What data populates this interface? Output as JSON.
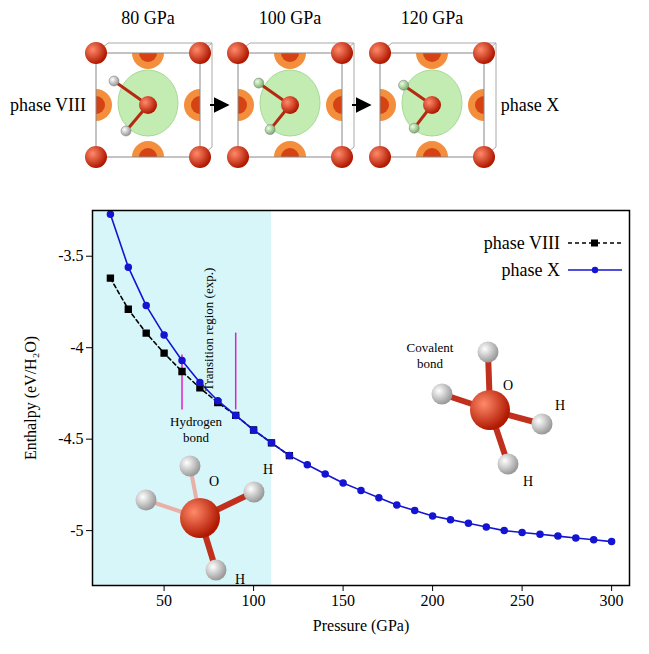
{
  "chart_data": {
    "type": "line",
    "xlabel": "Pressure (GPa)",
    "ylabel": "Enthalpy (eV/H₂O)",
    "xlim": [
      10,
      310
    ],
    "xticks": [
      50,
      100,
      150,
      200,
      250,
      300
    ],
    "ylim": [
      -5.3,
      -3.25
    ],
    "yticks": [
      -3.5,
      -4,
      -4.5,
      -5
    ],
    "legend": "upper right",
    "series": [
      {
        "name": "phase VIII",
        "color": "#000000",
        "marker": "square",
        "line_style": "dashed",
        "x": [
          20,
          30,
          40,
          50,
          60,
          70,
          80,
          90,
          100,
          110,
          120
        ],
        "values": [
          -3.62,
          -3.79,
          -3.92,
          -4.03,
          -4.13,
          -4.22,
          -4.3,
          -4.37,
          -4.45,
          -4.52,
          -4.59
        ]
      },
      {
        "name": "phase X",
        "color": "#1414d2",
        "marker": "circle",
        "line_style": "solid",
        "x": [
          20,
          30,
          40,
          50,
          60,
          70,
          80,
          90,
          100,
          110,
          120,
          130,
          140,
          150,
          160,
          170,
          180,
          190,
          200,
          210,
          220,
          230,
          240,
          250,
          260,
          270,
          280,
          290,
          300
        ],
        "values": [
          -3.27,
          -3.56,
          -3.77,
          -3.93,
          -4.07,
          -4.19,
          -4.29,
          -4.37,
          -4.45,
          -4.52,
          -4.59,
          -4.64,
          -4.69,
          -4.74,
          -4.78,
          -4.82,
          -4.86,
          -4.89,
          -4.92,
          -4.94,
          -4.96,
          -4.98,
          -5.0,
          -5.01,
          -5.02,
          -5.03,
          -5.04,
          -5.05,
          -5.06
        ]
      }
    ],
    "shaded_region": {
      "x": [
        10,
        110
      ],
      "color": "#d6f6fa"
    },
    "transition_lines": [
      {
        "x": 60,
        "y": [
          -4.04,
          -4.34
        ],
        "color": "#e020c8"
      },
      {
        "x": 90,
        "y": [
          -3.92,
          -4.34
        ],
        "color": "#e020c8"
      }
    ],
    "annotation": {
      "text": "Transition region (exp.)",
      "x": 75,
      "y": -3.9
    },
    "insets": [
      {
        "label": "Hydrogen bond",
        "atoms": [
          "O",
          "H",
          "H"
        ]
      },
      {
        "label": "Covalent bond",
        "atoms": [
          "O",
          "H",
          "H"
        ]
      }
    ],
    "panels": {
      "titles": [
        "80 GPa",
        "100 GPa",
        "120 GPa"
      ],
      "start": "phase VIII",
      "end": "phase X"
    }
  }
}
